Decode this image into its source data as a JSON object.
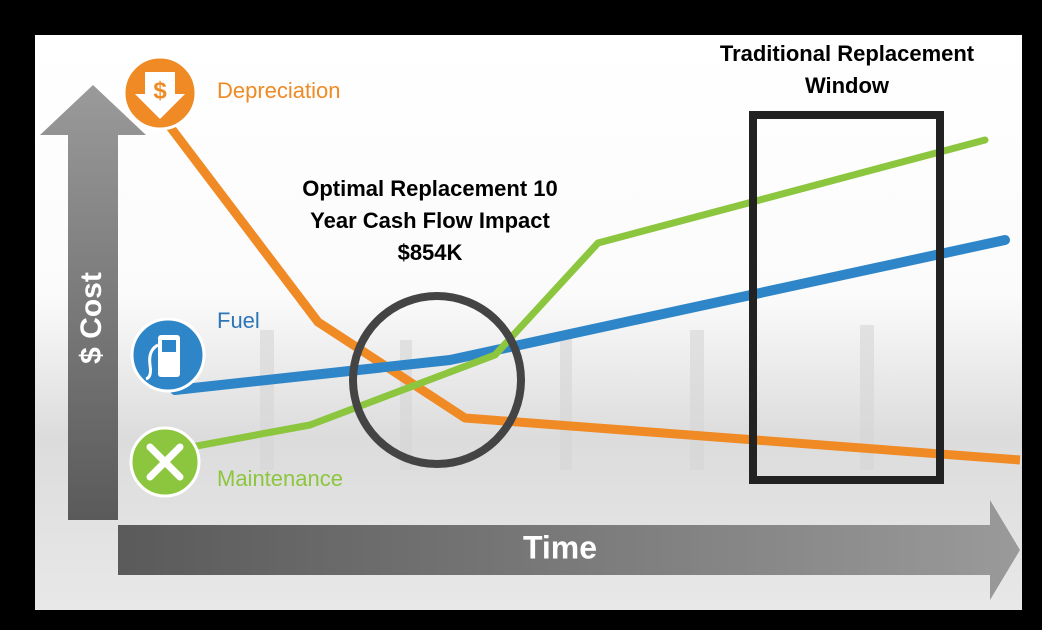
{
  "axes": {
    "y_label": "$ Cost",
    "x_label": "Time"
  },
  "curves": [
    {
      "label": "Depreciation",
      "icon_text": "$"
    },
    {
      "label": "Fuel"
    },
    {
      "label": "Maintenance"
    }
  ],
  "annotations": {
    "optimal": {
      "lines": [
        "Optimal Replacement 10",
        "Year Cash Flow Impact",
        "$854K"
      ]
    },
    "traditional": {
      "lines": [
        "Traditional Replacement",
        "Window"
      ]
    }
  }
}
